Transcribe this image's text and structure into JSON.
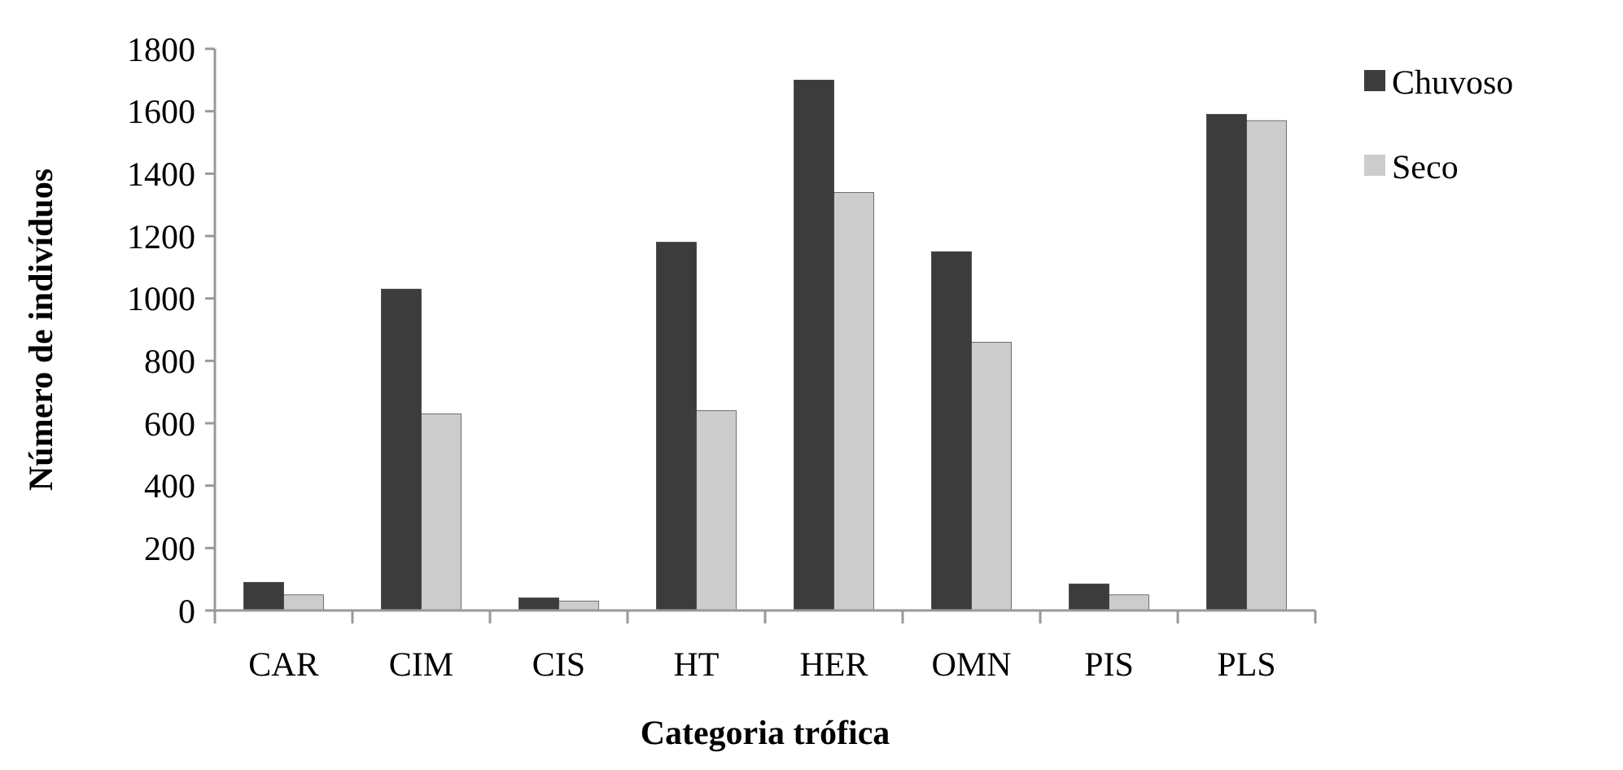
{
  "chart_data": {
    "type": "bar",
    "xlabel": "Categoria trófica",
    "ylabel": "Número de indivíduos",
    "categories": [
      "CAR",
      "CIM",
      "CIS",
      "HT",
      "HER",
      "OMN",
      "PIS",
      "PLS"
    ],
    "series": [
      {
        "name": "Chuvoso",
        "color": "#3c3c3c",
        "values": [
          90,
          1030,
          40,
          1180,
          1700,
          1150,
          85,
          1590
        ]
      },
      {
        "name": "Seco",
        "color": "#cccccc",
        "values": [
          50,
          630,
          30,
          640,
          1340,
          860,
          50,
          1570
        ]
      }
    ],
    "ylim": [
      0,
      1800
    ],
    "yticks": [
      0,
      200,
      400,
      600,
      800,
      1000,
      1200,
      1400,
      1600,
      1800
    ],
    "grid": false,
    "legend": "right"
  }
}
